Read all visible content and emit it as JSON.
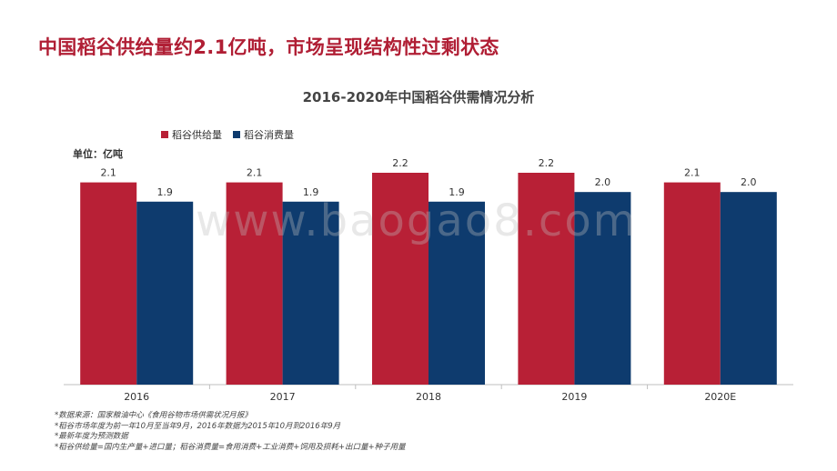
{
  "slide_title": "中国稻谷供给量约2.1亿吨，市场呈现结构性过剩状态",
  "unit_label": "单位：亿吨",
  "watermark": "www.baogao8.com",
  "colors": {
    "supply": "#b82036",
    "consumption": "#0e3b6e",
    "title": "#b01e34"
  },
  "chart_data": {
    "type": "bar",
    "title": "2016-2020年中国稻谷供需情况分析",
    "categories": [
      "2016",
      "2017",
      "2018",
      "2019",
      "2020E"
    ],
    "series": [
      {
        "name": "稻谷供给量",
        "values": [
          2.1,
          2.1,
          2.2,
          2.2,
          2.1
        ],
        "labels": [
          "2.1",
          "2.1",
          "2.2",
          "2.2",
          "2.1"
        ]
      },
      {
        "name": "稻谷消费量",
        "values": [
          1.9,
          1.9,
          1.9,
          2.0,
          2.0
        ],
        "labels": [
          "1.9",
          "1.9",
          "1.9",
          "2.0",
          "2.0"
        ]
      }
    ],
    "ylim": [
      0,
      2.3
    ],
    "grid": false,
    "legend": "top-left"
  },
  "notes": [
    "*数据来源：国家粮油中心《食用谷物市场供需状况月报》",
    "*稻谷市场年度为前一年10月至当年9月，2016年数据为2015年10月到2016年9月",
    "*最新年度为预测数据",
    "*稻谷供给量=国内生产量+进口量；稻谷消费量=食用消费+工业消费+饲用及损耗+出口量+种子用量"
  ]
}
